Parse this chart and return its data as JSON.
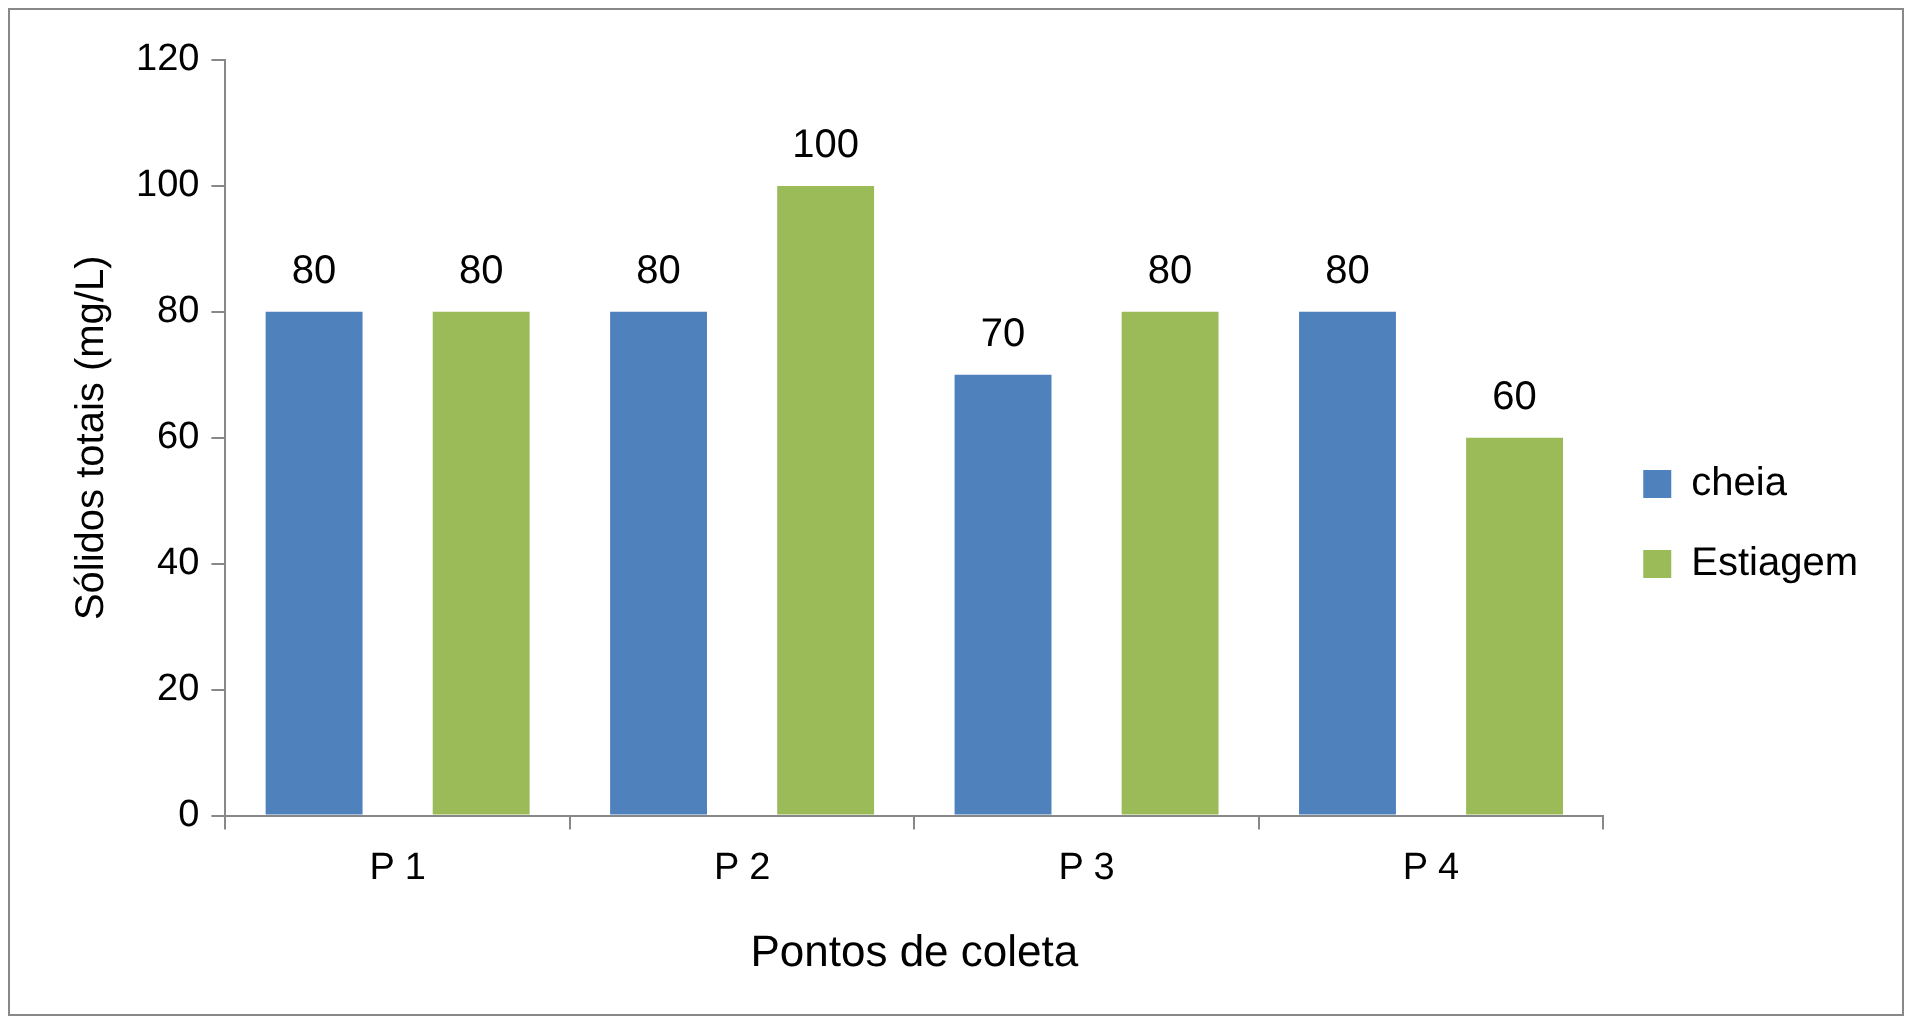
{
  "chart_data": {
    "type": "bar",
    "xlabel": "Pontos de coleta",
    "ylabel": "Sólidos totais (mg/L)",
    "categories": [
      "P 1",
      "P 2",
      "P 3",
      "P 4"
    ],
    "series": [
      {
        "name": "cheia",
        "color": "#4f81bd",
        "values": [
          80,
          80,
          70,
          80
        ]
      },
      {
        "name": "Estiagem",
        "color": "#9bbb59",
        "values": [
          80,
          100,
          80,
          60
        ]
      }
    ],
    "ylim": [
      0,
      120
    ],
    "yticks": [
      0,
      20,
      40,
      60,
      80,
      100,
      120
    ],
    "grid": false,
    "legend": "right",
    "data_labels": true
  }
}
